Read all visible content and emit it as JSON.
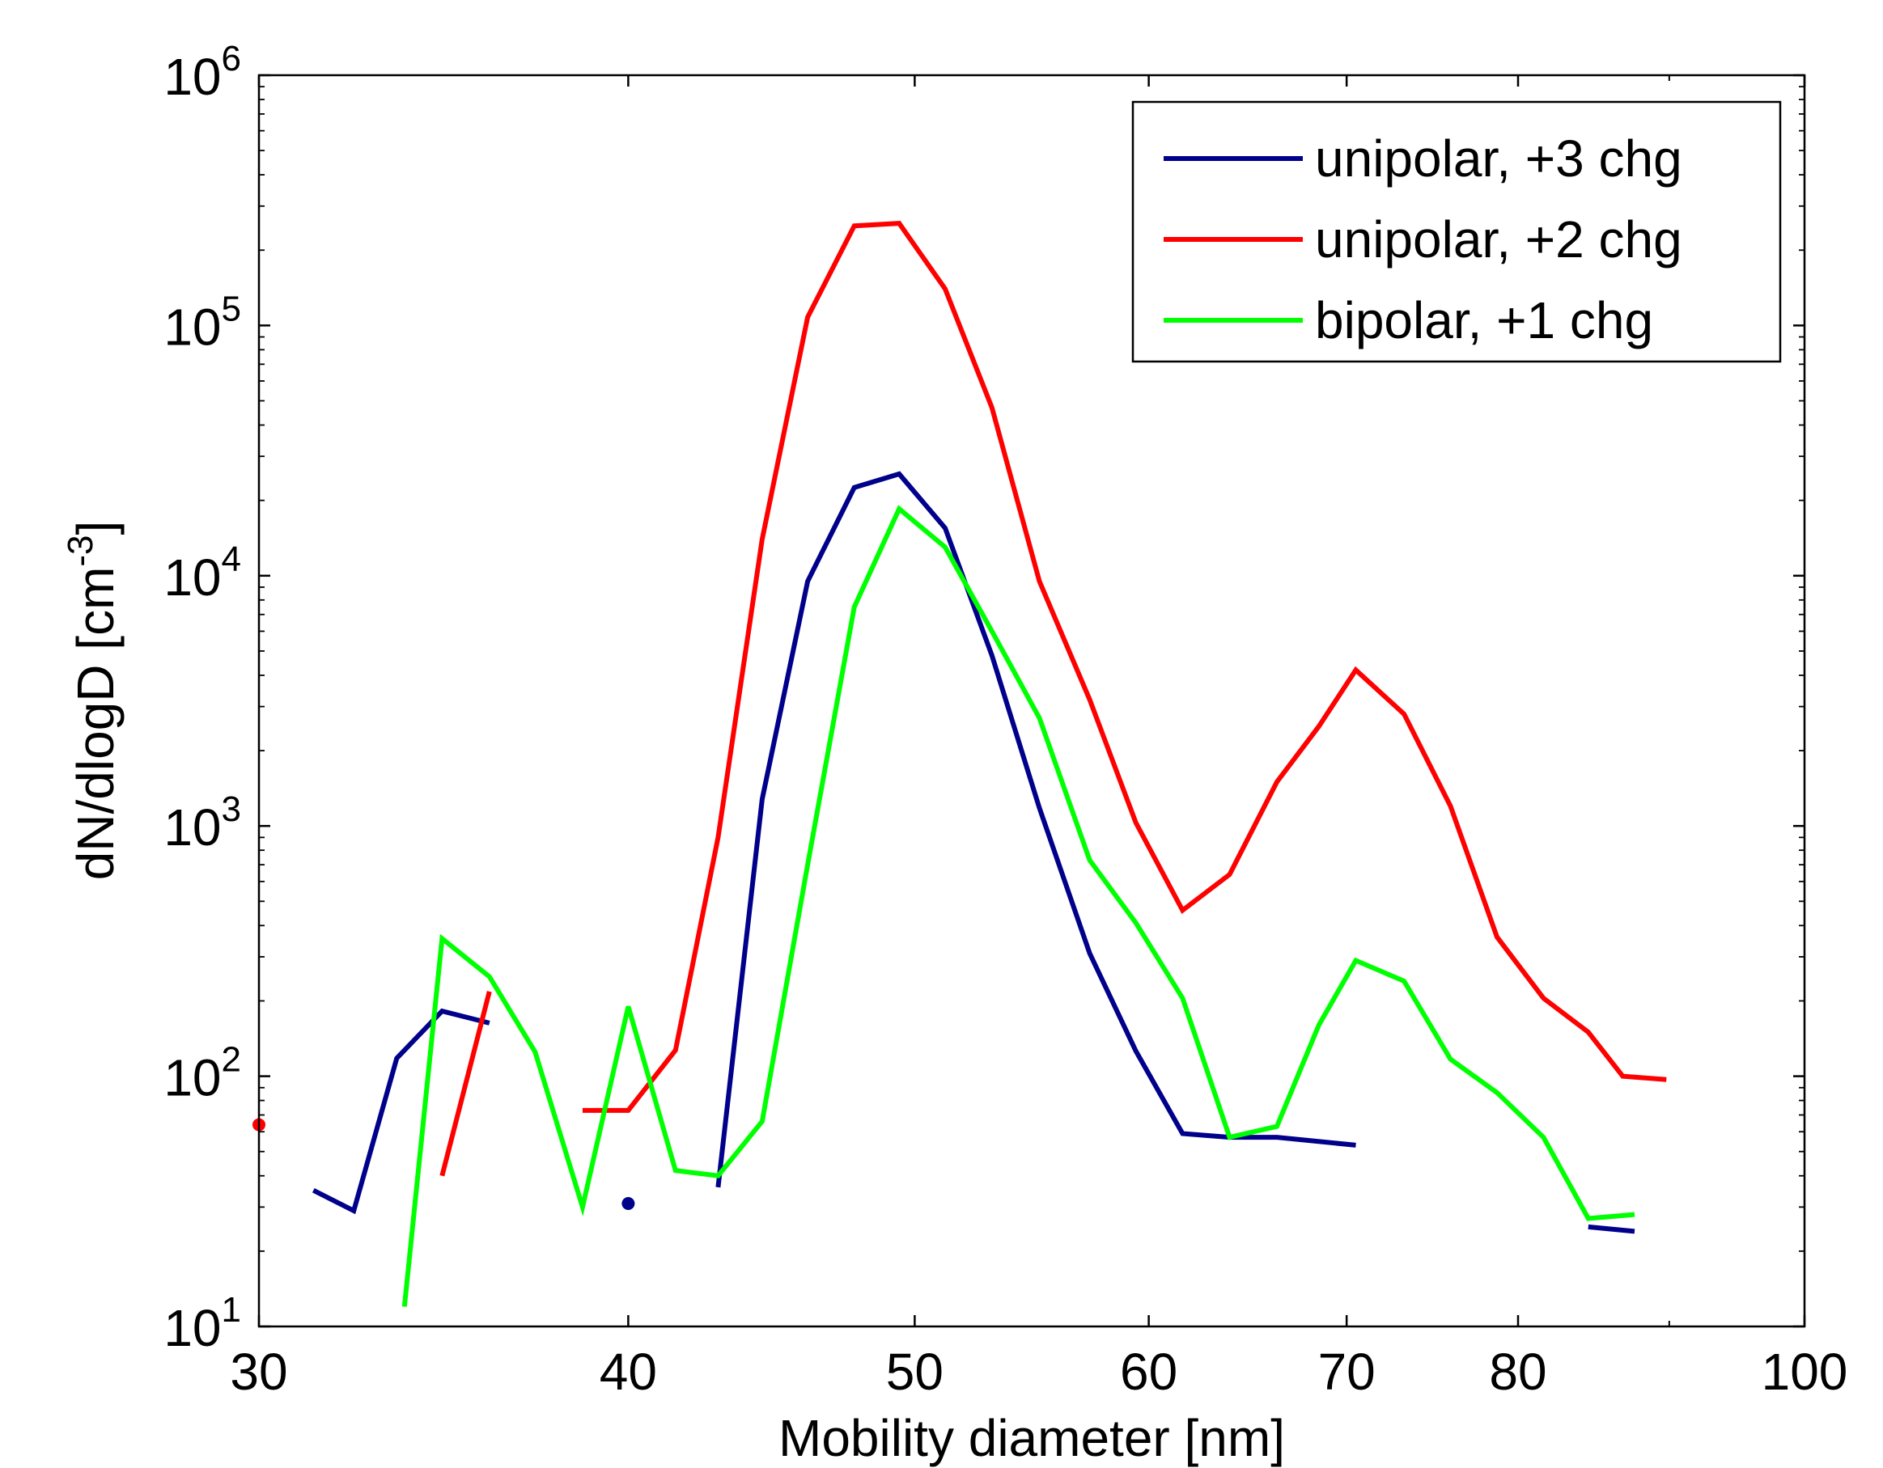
{
  "chart_data": {
    "type": "line",
    "xlabel": "Mobility diameter [nm]",
    "ylabel_main": "dN/dlogD [cm",
    "ylabel_sup": "-3",
    "ylabel_close": "]",
    "x_scale": "log",
    "y_scale": "log",
    "xlim": [
      30,
      100
    ],
    "ylim": [
      10,
      1000000
    ],
    "x_ticks": [
      30,
      40,
      50,
      60,
      70,
      80,
      100
    ],
    "x_tick_labels": [
      "30",
      "40",
      "50",
      "60",
      "70",
      "80",
      "100"
    ],
    "y_ticks": [
      10,
      100,
      1000,
      10000,
      100000,
      1000000
    ],
    "y_tick_base": "10",
    "y_tick_exponents": [
      "1",
      "2",
      "3",
      "4",
      "5",
      "6"
    ],
    "grid": false,
    "legend_position": "top-right",
    "series": [
      {
        "name": "unipolar, +3 chg",
        "color": "#00008b",
        "segments": [
          [
            [
              31.3,
              35
            ],
            [
              32.3,
              29
            ],
            [
              33.4,
              118
            ],
            [
              34.6,
              182
            ],
            [
              35.9,
              163
            ]
          ],
          [
            [
              40.0,
              31
            ]
          ],
          [
            [
              42.9,
              36
            ],
            [
              44.4,
              1280
            ],
            [
              46.0,
              9500
            ],
            [
              47.7,
              22500
            ],
            [
              49.4,
              25500
            ],
            [
              51.2,
              15500
            ],
            [
              53.1,
              4800
            ],
            [
              55.1,
              1180
            ],
            [
              57.3,
              310
            ],
            [
              59.4,
              126
            ],
            [
              61.6,
              59
            ],
            [
              63.9,
              57
            ],
            [
              66.3,
              57
            ],
            [
              70.5,
              53
            ]
          ],
          [
            [
              84.5,
              25
            ],
            [
              87.6,
              24
            ]
          ]
        ]
      },
      {
        "name": "unipolar, +2 chg",
        "color": "#ff0000",
        "segments": [
          [
            [
              30.0,
              64
            ]
          ],
          [
            [
              34.6,
              40
            ],
            [
              35.9,
              218
            ]
          ],
          [
            [
              38.6,
              73
            ],
            [
              40.0,
              73
            ],
            [
              41.5,
              127
            ],
            [
              42.9,
              900
            ],
            [
              44.4,
              14000
            ],
            [
              46.0,
              108000
            ],
            [
              47.7,
              250000
            ],
            [
              49.4,
              256000
            ],
            [
              51.2,
              140000
            ],
            [
              53.1,
              47000
            ],
            [
              55.1,
              9500
            ],
            [
              57.3,
              3200
            ],
            [
              59.4,
              1030
            ],
            [
              61.6,
              460
            ],
            [
              63.9,
              640
            ],
            [
              66.3,
              1500
            ],
            [
              68.5,
              2500
            ],
            [
              70.5,
              4200
            ],
            [
              73.2,
              2800
            ],
            [
              75.9,
              1200
            ],
            [
              78.7,
              360
            ],
            [
              81.6,
              205
            ],
            [
              84.5,
              150
            ],
            [
              86.8,
              100
            ],
            [
              89.8,
              97
            ]
          ]
        ]
      },
      {
        "name": "bipolar, +1 chg",
        "color": "#00ff00",
        "segments": [
          [
            [
              33.6,
              12
            ],
            [
              34.6,
              355
            ],
            [
              35.9,
              250
            ],
            [
              37.2,
              125
            ],
            [
              38.6,
              30
            ],
            [
              40.0,
              190
            ],
            [
              41.5,
              42
            ],
            [
              42.9,
              40
            ],
            [
              44.4,
              66
            ],
            [
              46.0,
              700
            ],
            [
              47.7,
              7500
            ],
            [
              49.4,
              18500
            ],
            [
              51.2,
              13000
            ],
            [
              53.1,
              6000
            ],
            [
              55.1,
              2700
            ],
            [
              57.3,
              730
            ],
            [
              59.4,
              410
            ],
            [
              61.6,
              205
            ],
            [
              63.9,
              57
            ],
            [
              66.3,
              63
            ],
            [
              68.5,
              160
            ],
            [
              70.5,
              290
            ],
            [
              73.2,
              240
            ],
            [
              75.9,
              117
            ],
            [
              78.7,
              86
            ],
            [
              81.6,
              57
            ],
            [
              84.5,
              27
            ],
            [
              87.6,
              28
            ]
          ]
        ]
      }
    ]
  }
}
